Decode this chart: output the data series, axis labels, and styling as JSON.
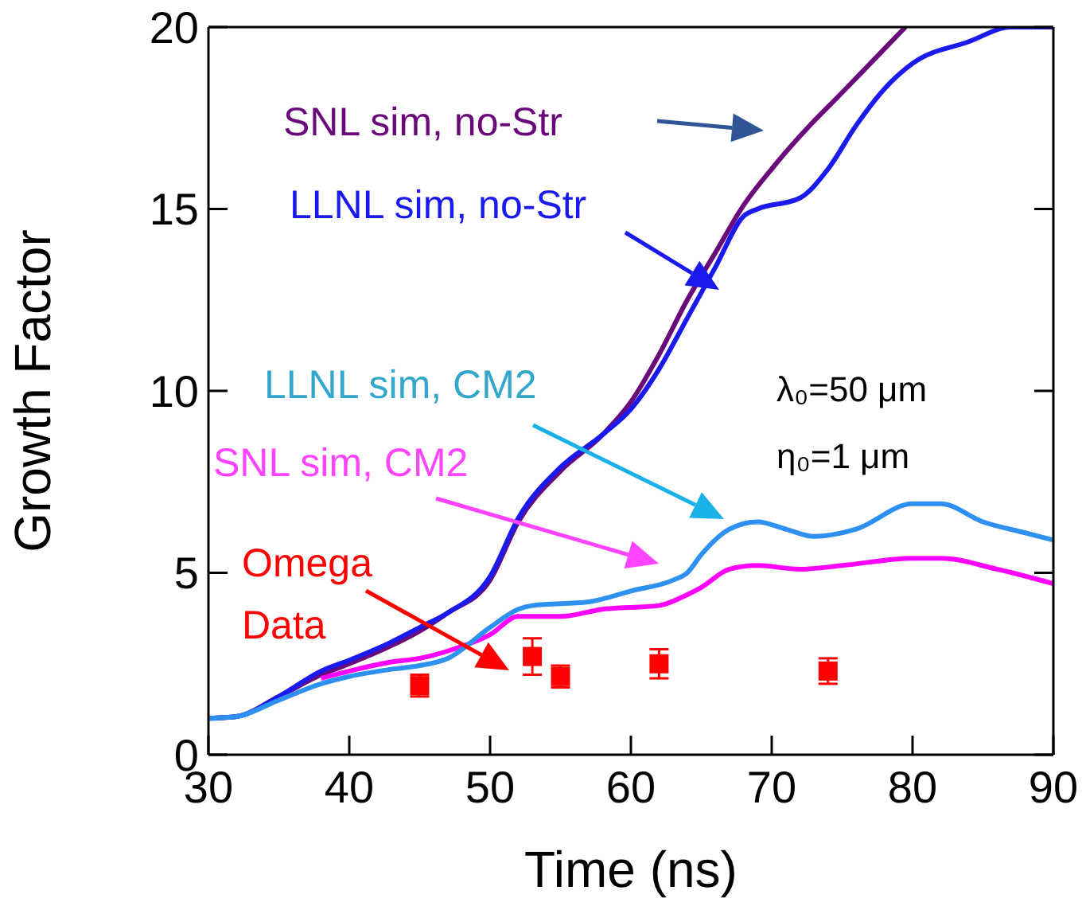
{
  "chart_data": {
    "type": "line",
    "xlabel": "Time (ns)",
    "ylabel": "Growth Factor",
    "xlim": [
      30,
      90
    ],
    "ylim": [
      0,
      20
    ],
    "xticks": [
      30,
      40,
      50,
      60,
      70,
      80,
      90
    ],
    "yticks": [
      0,
      5,
      10,
      15,
      20
    ],
    "grid": false,
    "legend": false,
    "marker": "none",
    "line_style": "solid",
    "annotations": [
      "λ₀=50 μm",
      "η₀=1 μm"
    ],
    "series": [
      {
        "name": "SNL sim, no-Str",
        "color": "#6a0a7a",
        "x": [
          30,
          32,
          35,
          38,
          40,
          43,
          45,
          47,
          50,
          52,
          55,
          58,
          60,
          62,
          64,
          66,
          68,
          70,
          72,
          75,
          78,
          79.5
        ],
        "values": [
          1.0,
          1.05,
          1.6,
          2.2,
          2.5,
          3.0,
          3.4,
          3.9,
          4.8,
          6.4,
          7.8,
          8.8,
          9.7,
          11.0,
          12.5,
          13.8,
          15.1,
          16.1,
          17.0,
          18.2,
          19.4,
          20
        ]
      },
      {
        "name": "LLNL sim, no-Str",
        "color": "#1a1aee",
        "x": [
          30,
          32,
          35,
          38,
          40,
          43,
          45,
          47,
          50,
          52,
          55,
          58,
          60,
          62,
          64,
          66,
          68,
          69,
          72,
          74,
          76,
          78,
          80,
          84,
          87,
          90
        ],
        "values": [
          1.0,
          1.05,
          1.6,
          2.3,
          2.6,
          3.1,
          3.5,
          3.9,
          4.9,
          6.5,
          7.9,
          8.8,
          9.5,
          10.6,
          12.0,
          13.4,
          14.8,
          15.0,
          15.3,
          16.1,
          17.3,
          18.3,
          19.0,
          19.6,
          20,
          20
        ]
      },
      {
        "name": "SNL sim, CM2",
        "color": "#ff00ff",
        "x": [
          38,
          40,
          43,
          45,
          47,
          50,
          52,
          55,
          58,
          62,
          64,
          65,
          67,
          69,
          72,
          75,
          80,
          82,
          86,
          90
        ],
        "values": [
          2.1,
          2.3,
          2.55,
          2.65,
          2.85,
          3.3,
          3.8,
          3.8,
          4.0,
          4.1,
          4.4,
          4.6,
          5.1,
          5.2,
          5.1,
          5.2,
          5.4,
          5.4,
          5.1,
          4.7
        ]
      },
      {
        "name": "LLNL sim, CM2",
        "color": "#2e90f0",
        "x": [
          30,
          32,
          35,
          38,
          40,
          43,
          45,
          47,
          50,
          52,
          53,
          57,
          60,
          63,
          64,
          65,
          67,
          69,
          71,
          73,
          76,
          80,
          82,
          85,
          88,
          90
        ],
        "values": [
          1.0,
          1.05,
          1.5,
          1.95,
          2.15,
          2.35,
          2.45,
          2.65,
          3.5,
          4.0,
          4.1,
          4.2,
          4.5,
          4.8,
          5.0,
          5.5,
          6.2,
          6.4,
          6.2,
          6.0,
          6.2,
          6.9,
          6.9,
          6.4,
          6.1,
          5.9
        ]
      },
      {
        "name": "Omega Data",
        "type": "scatter",
        "color": "#ff0000",
        "marker": "square",
        "x": [
          45,
          53,
          55,
          62,
          74
        ],
        "values": [
          1.9,
          2.7,
          2.15,
          2.5,
          2.3
        ],
        "errors": [
          0.3,
          0.5,
          0.3,
          0.4,
          0.35
        ]
      }
    ]
  }
}
